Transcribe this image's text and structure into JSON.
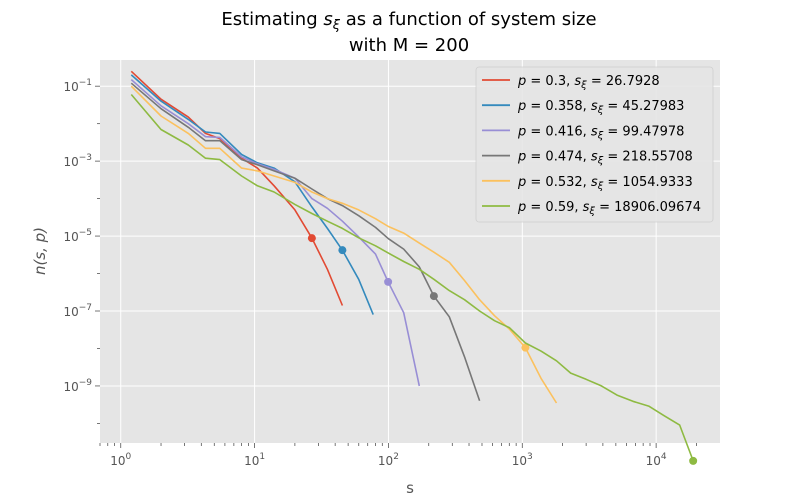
{
  "title_prefix": "Estimating ",
  "title_var": "s",
  "title_sub": "ξ",
  "title_suffix": " as a function of system size",
  "title_line2": "with M = 200",
  "chart_data": {
    "type": "line",
    "xscale": "log",
    "yscale": "log",
    "xlim": [
      0.7,
      30000
    ],
    "ylim": [
      3e-11,
      0.5
    ],
    "xlabel": "s",
    "ylabel": "n(s, p)",
    "grid": true,
    "legend_position": "top-right",
    "x_ticks": [
      {
        "value": 1,
        "base": "10",
        "exp": "0"
      },
      {
        "value": 10,
        "base": "10",
        "exp": "1"
      },
      {
        "value": 100,
        "base": "10",
        "exp": "2"
      },
      {
        "value": 1000,
        "base": "10",
        "exp": "3"
      },
      {
        "value": 10000,
        "base": "10",
        "exp": "4"
      }
    ],
    "y_ticks": [
      {
        "value": 1e-09,
        "base": "10",
        "exp": "−9"
      },
      {
        "value": 1e-07,
        "base": "10",
        "exp": "−7"
      },
      {
        "value": 1e-05,
        "base": "10",
        "exp": "−5"
      },
      {
        "value": 0.001,
        "base": "10",
        "exp": "−3"
      },
      {
        "value": 0.1,
        "base": "10",
        "exp": "−1"
      }
    ],
    "series": [
      {
        "p": "0.3",
        "s_xi": "26.7928",
        "color": "#E24A33",
        "x": [
          1.2,
          2.0,
          3.2,
          4.3,
          5.5,
          8.0,
          10.5,
          14.0,
          20.0,
          26.8,
          35.0,
          45.3
        ],
        "y": [
          0.25,
          0.045,
          0.015,
          0.0055,
          0.004,
          0.0012,
          0.00065,
          0.00022,
          5e-05,
          8.8e-06,
          1.3e-06,
          1.4e-07
        ],
        "marker": {
          "x": 26.7928,
          "y": 8.8e-06
        }
      },
      {
        "p": "0.358",
        "s_xi": "45.27983",
        "color": "#348ABD",
        "x": [
          1.2,
          2.0,
          3.2,
          4.3,
          5.5,
          8.0,
          10.5,
          14.0,
          20.0,
          26.8,
          35.0,
          45.3,
          60.0,
          77.0
        ],
        "y": [
          0.2,
          0.04,
          0.013,
          0.006,
          0.0055,
          0.0015,
          0.0009,
          0.00065,
          0.00028,
          6e-05,
          1.6e-05,
          4.2e-06,
          7e-07,
          8e-08
        ],
        "marker": {
          "x": 45.27983,
          "y": 4.2e-06
        }
      },
      {
        "p": "0.416",
        "s_xi": "99.47978",
        "color": "#988ED5",
        "x": [
          1.2,
          2.0,
          3.2,
          4.3,
          5.5,
          8.0,
          10.5,
          14.0,
          20.0,
          26.8,
          35.0,
          45.3,
          60.0,
          80.0,
          99.5,
          130.0,
          170.0
        ],
        "y": [
          0.15,
          0.03,
          0.01,
          0.0045,
          0.0043,
          0.0013,
          0.00085,
          0.0006,
          0.00035,
          0.0001,
          5.5e-05,
          2.5e-05,
          9.5e-06,
          3.3e-06,
          6e-07,
          9e-08,
          1e-09
        ],
        "marker": {
          "x": 99.47978,
          "y": 6e-07
        }
      },
      {
        "p": "0.474",
        "s_xi": "218.55708",
        "color": "#777777",
        "x": [
          1.2,
          2.0,
          3.2,
          4.3,
          5.5,
          8.0,
          10.5,
          14.0,
          20.0,
          26.8,
          35.0,
          45.3,
          60.0,
          80.0,
          100.0,
          130.0,
          170.0,
          218.6,
          285.0,
          370.0,
          480.0
        ],
        "y": [
          0.12,
          0.025,
          0.008,
          0.0035,
          0.0035,
          0.0011,
          0.0008,
          0.00055,
          0.00035,
          0.00018,
          0.0001,
          6.5e-05,
          3.5e-05,
          1.7e-05,
          8.5e-06,
          4.5e-06,
          1.5e-06,
          2.5e-07,
          7e-08,
          6e-09,
          4e-10
        ],
        "marker": {
          "x": 218.55708,
          "y": 2.5e-07
        }
      },
      {
        "p": "0.532",
        "s_xi": "1054.9333",
        "color": "#FBC15E",
        "x": [
          1.2,
          2.0,
          3.2,
          4.3,
          5.5,
          8.0,
          10.5,
          14.0,
          20.0,
          26.8,
          35.0,
          45.3,
          60.0,
          80.0,
          100.0,
          130.0,
          170.0,
          218.6,
          285.0,
          370.0,
          480.0,
          620.0,
          800.0,
          1054.9,
          1380.0,
          1800.0
        ],
        "y": [
          0.1,
          0.016,
          0.0055,
          0.0022,
          0.0022,
          0.00065,
          0.00055,
          0.0004,
          0.00027,
          0.00015,
          0.0001,
          7.5e-05,
          5e-05,
          2.9e-05,
          1.8e-05,
          1.2e-05,
          6.5e-06,
          3.7e-06,
          2e-06,
          6.5e-07,
          2e-07,
          7.5e-08,
          3.3e-08,
          1.05e-08,
          1.6e-09,
          3.5e-10
        ],
        "marker": {
          "x": 1054.9333,
          "y": 1.05e-08
        }
      },
      {
        "p": "0.59",
        "s_xi": "18906.09674",
        "color": "#8EBA42",
        "x": [
          1.2,
          2.0,
          3.2,
          4.3,
          5.5,
          8.0,
          10.5,
          14.0,
          20.0,
          26.8,
          35.0,
          45.3,
          60.0,
          80.0,
          100.0,
          130.0,
          170.0,
          218.6,
          285.0,
          370.0,
          480.0,
          620.0,
          800.0,
          1054.9,
          1380.0,
          1800.0,
          2300.0,
          3000.0,
          3900.0,
          5100.0,
          6700.0,
          8800.0,
          11500.0,
          15000.0,
          18906.1
        ],
        "y": [
          0.06,
          0.007,
          0.0027,
          0.0012,
          0.0011,
          0.0004,
          0.00022,
          0.00015,
          7e-05,
          4e-05,
          2.5e-05,
          1.6e-05,
          9e-06,
          5.5e-06,
          3.5e-06,
          2.1e-06,
          1.3e-06,
          7e-07,
          3.5e-07,
          2e-07,
          1e-07,
          5.5e-08,
          3.6e-08,
          1.4e-08,
          8.5e-09,
          4.7e-09,
          2.2e-09,
          1.5e-09,
          1e-09,
          5.7e-10,
          3.9e-10,
          2.9e-10,
          1.6e-10,
          9e-11,
          1e-11
        ],
        "marker": {
          "x": 18906.09674,
          "y": 1e-11
        }
      }
    ]
  }
}
